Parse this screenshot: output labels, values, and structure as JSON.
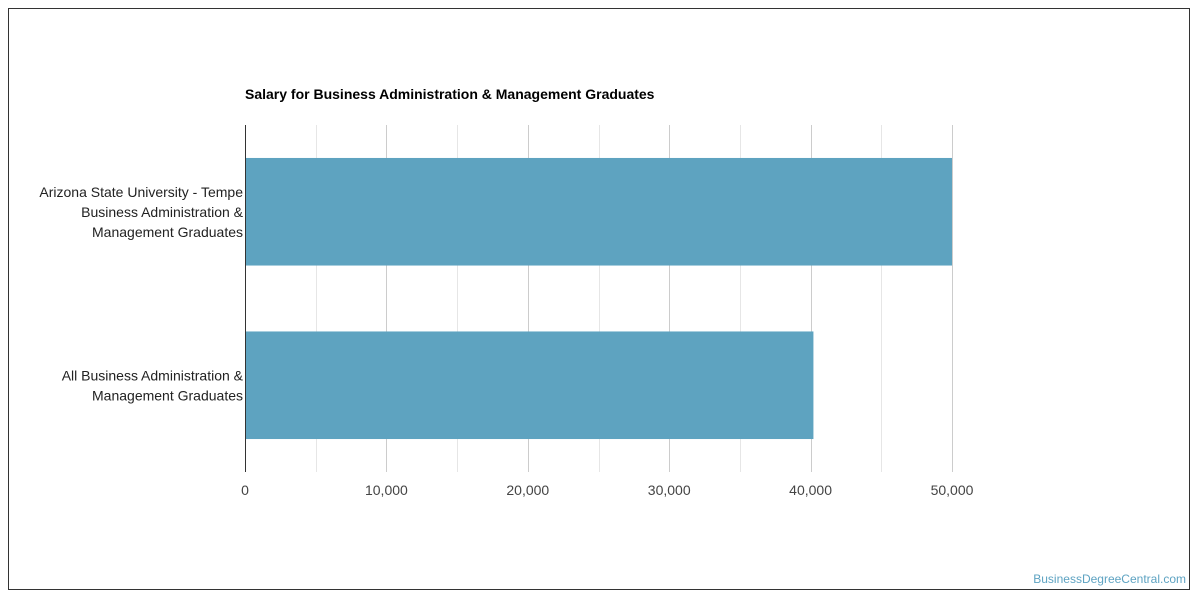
{
  "chart_data": {
    "type": "bar",
    "orientation": "horizontal",
    "title": "Salary for Business Administration & Management Graduates",
    "categories": [
      [
        "Arizona State University - Tempe",
        "Business Administration &",
        "Management Graduates"
      ],
      [
        "All Business Administration &",
        "Management Graduates"
      ]
    ],
    "values": [
      50000,
      40200
    ],
    "xlim": [
      0,
      50000
    ],
    "xticks": [
      0,
      10000,
      20000,
      30000,
      40000,
      50000
    ],
    "xtick_labels": [
      "0",
      "10,000",
      "20,000",
      "30,000",
      "40,000",
      "50,000"
    ],
    "xlabel": "",
    "ylabel": "",
    "grid": true,
    "legend": "none",
    "bar_color": "#5ea3c0"
  },
  "watermark": "BusinessDegreeCentral.com"
}
